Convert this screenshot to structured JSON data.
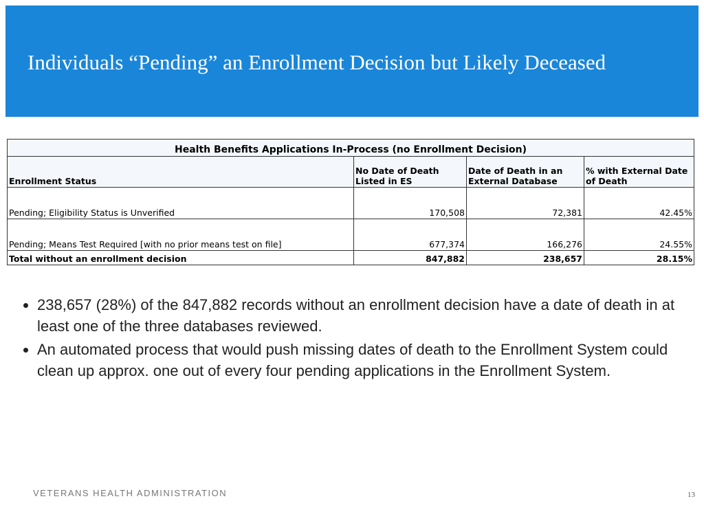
{
  "header": {
    "title": "Individuals “Pending” an Enrollment Decision but Likely Deceased"
  },
  "table": {
    "title": "Health Benefits Applications In-Process (no Enrollment Decision)",
    "columns": [
      "Enrollment Status",
      "No Date of Death Listed in ES",
      "Date of Death in an External Database",
      "% with External Date of Death"
    ],
    "rows": [
      [
        "Pending; Eligibility Status is Unverified",
        "170,508",
        "72,381",
        "42.45%"
      ],
      [
        "Pending; Means Test Required [with no prior means test on file]",
        "677,374",
        "166,276",
        "24.55%"
      ]
    ],
    "total": [
      "Total without an enrollment decision",
      "847,882",
      "238,657",
      "28.15%"
    ]
  },
  "bullets": [
    "238,657 (28%) of the 847,882 records without an enrollment decision have a date of death in at least one of the three databases reviewed.",
    "An automated process that would push missing dates of death to the Enrollment System could clean up approx. one out of every four pending applications in the Enrollment System."
  ],
  "footer": {
    "organization": "VETERANS HEALTH ADMINISTRATION",
    "page_number": "13"
  }
}
